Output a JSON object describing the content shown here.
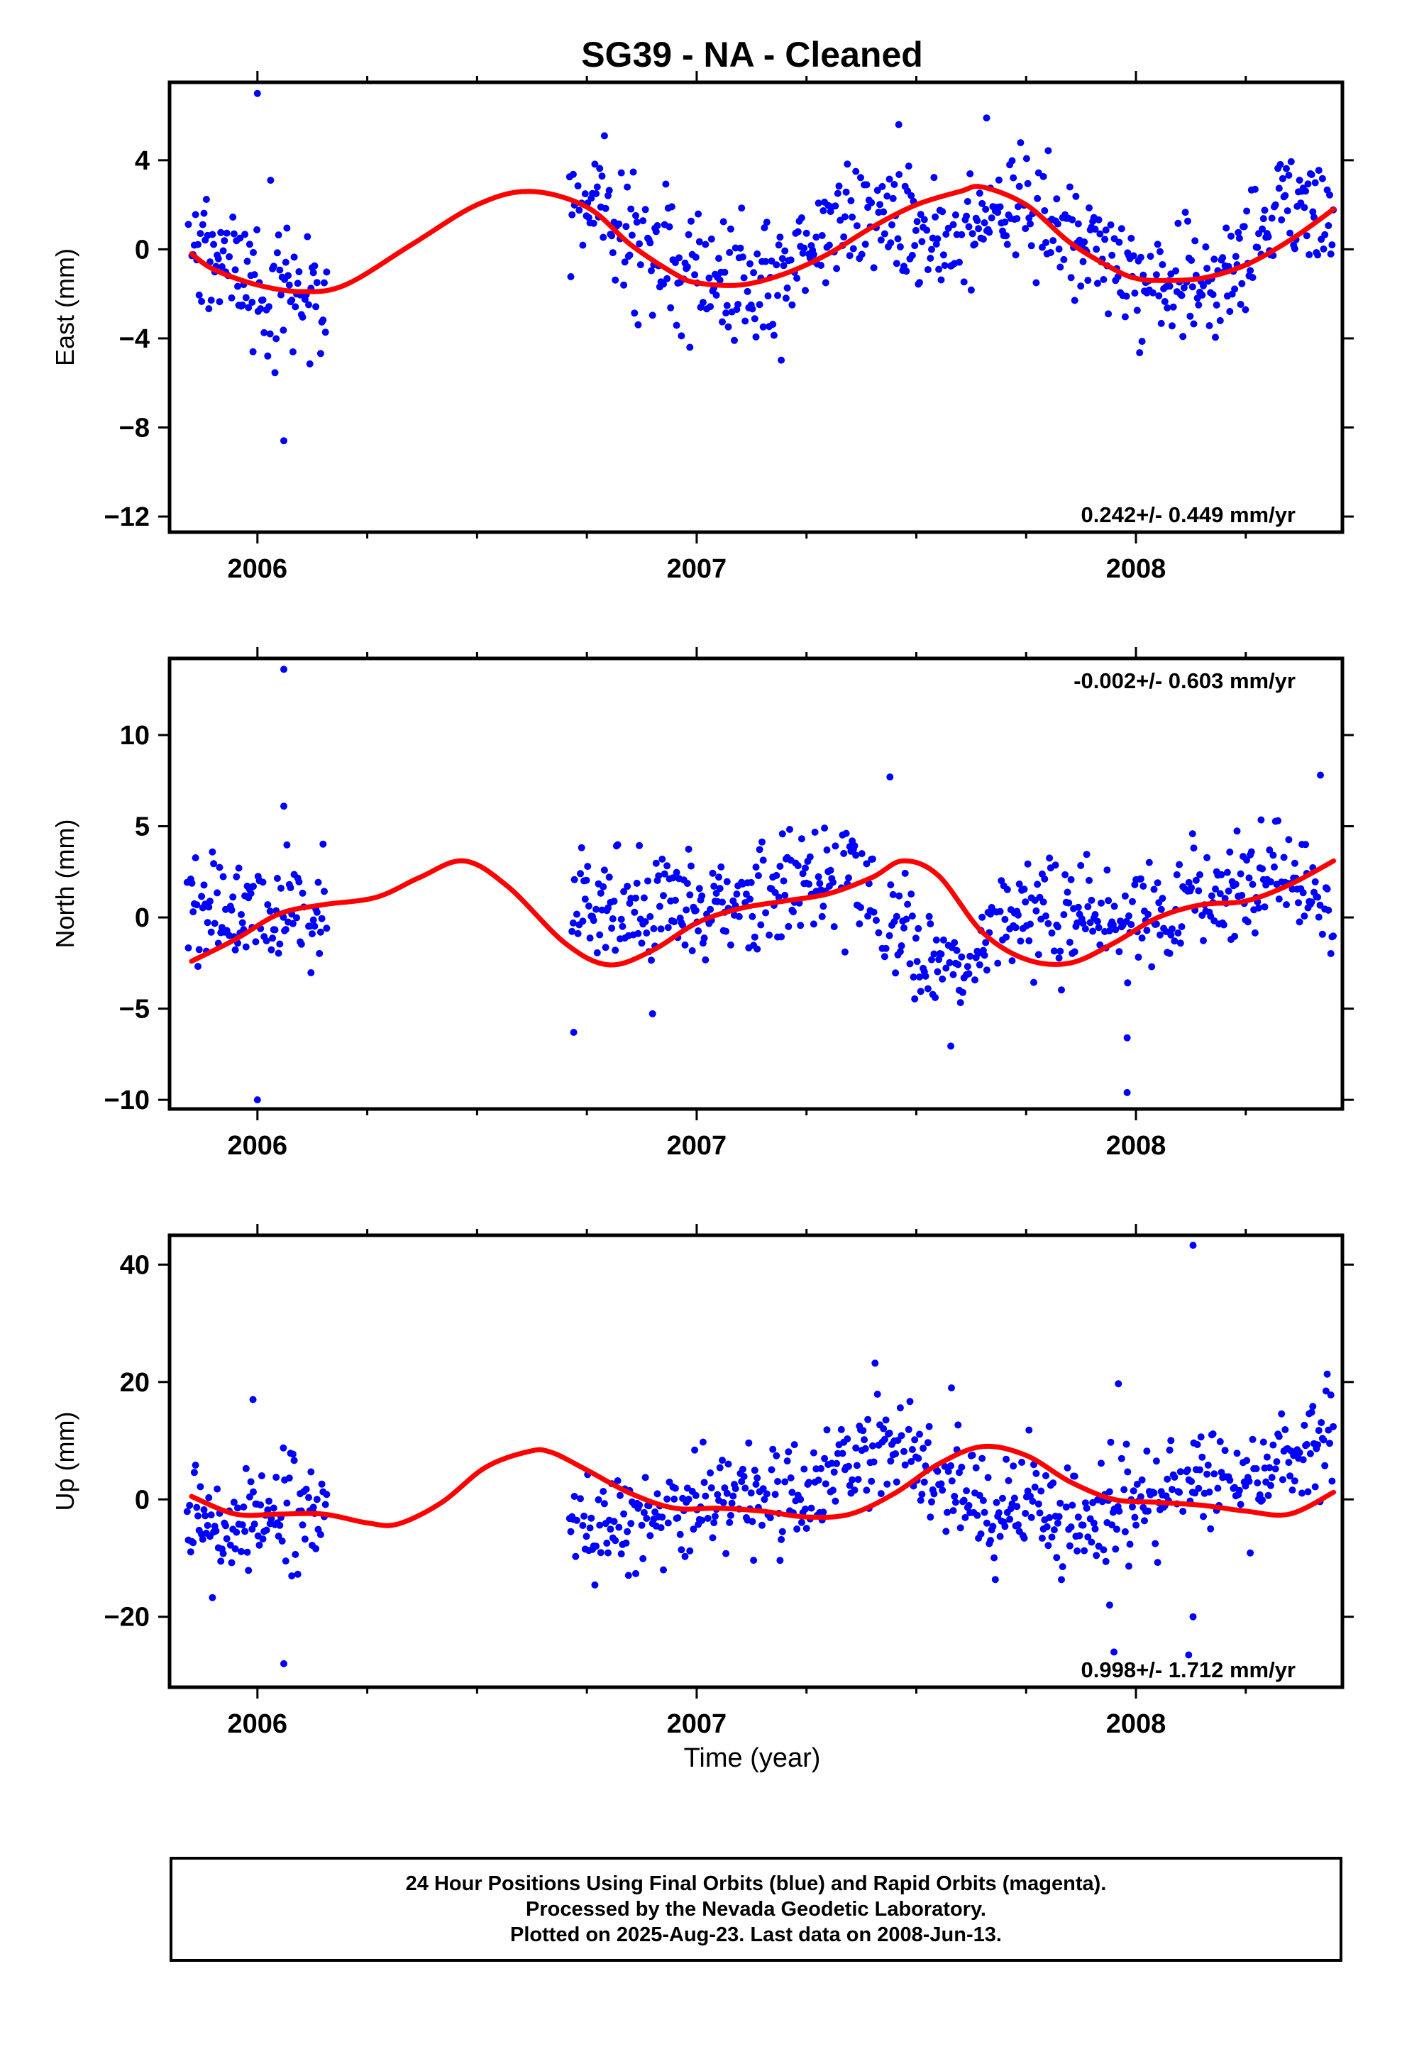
{
  "title": "SG39  - NA - Cleaned",
  "xlabel": "Time (year)",
  "colors": {
    "points": "#0000ff",
    "fit": "#ff0000",
    "frame": "#000000"
  },
  "footer": {
    "line1": "24 Hour Positions Using Final Orbits (blue) and Rapid Orbits (magenta).",
    "line2": "Processed by the Nevada Geodetic Laboratory.",
    "line3": "Plotted on 2025-Aug-23. Last data on 2008-Jun-13."
  },
  "chart_data": [
    {
      "type": "scatter",
      "ylabel": "East (mm)",
      "rate": "0.242+/- 0.449 mm/yr",
      "rate_position": "bottom-right",
      "xlim": [
        2005.8,
        2008.47
      ],
      "ylim": [
        -12.7,
        7.5
      ],
      "yticks": [
        4,
        0,
        -4,
        -8,
        -12
      ],
      "ytick_labels": [
        "4",
        "0",
        "−4",
        "−8",
        "−12"
      ],
      "xticks": [
        2006,
        2007,
        2008
      ],
      "xtick_labels": [
        "2006",
        "2007",
        "2008"
      ],
      "gaps": [
        [
          2006.16,
          2006.71
        ]
      ],
      "model": {
        "offset": 0.2,
        "trend": 0.242,
        "harmonics": [
          [
            -0.7,
            -1.2
          ],
          [
            -0.8,
            -0.6
          ],
          [
            0.3,
            0.2
          ]
        ],
        "noise": 1.3
      },
      "fit_curve": {
        "x": [
          2005.85,
          2005.9,
          2006.0,
          2006.1,
          2006.2,
          2006.35,
          2006.5,
          2006.62,
          2006.75,
          2006.85,
          2006.95,
          2007.0,
          2007.1,
          2007.2,
          2007.3,
          2007.4,
          2007.5,
          2007.6,
          2007.65,
          2007.75,
          2007.85,
          2007.95,
          2008.0,
          2008.05,
          2008.15,
          2008.25,
          2008.35,
          2008.45
        ],
        "y": [
          -0.2,
          -0.9,
          -1.6,
          -1.9,
          -1.6,
          0.2,
          2.0,
          2.6,
          1.9,
          0.2,
          -1.1,
          -1.5,
          -1.6,
          -1.1,
          -0.2,
          1.0,
          2.0,
          2.6,
          2.8,
          2.0,
          0.3,
          -0.9,
          -1.3,
          -1.4,
          -1.3,
          -0.7,
          0.4,
          1.8
        ]
      },
      "outliers": [
        {
          "x": 2006.0,
          "y": 7.0
        },
        {
          "x": 2006.06,
          "y": -8.6
        },
        {
          "x": 2005.99,
          "y": -4.6
        },
        {
          "x": 2006.03,
          "y": 3.1
        },
        {
          "x": 2007.66,
          "y": 5.9
        },
        {
          "x": 2007.46,
          "y": 5.6
        }
      ]
    },
    {
      "type": "scatter",
      "ylabel": "North (mm)",
      "rate": "-0.002+/- 0.603 mm/yr",
      "rate_position": "top-right",
      "xlim": [
        2005.8,
        2008.47
      ],
      "ylim": [
        -10.5,
        14.2
      ],
      "yticks": [
        10,
        5,
        0,
        -5,
        -10
      ],
      "ytick_labels": [
        "10",
        "5",
        "0",
        "−5",
        "−10"
      ],
      "xticks": [
        2006,
        2007,
        2008
      ],
      "xtick_labels": [
        "2006",
        "2007",
        "2008"
      ],
      "gaps": [
        [
          2006.16,
          2006.71
        ]
      ],
      "model": {
        "offset": 0.2,
        "trend": -0.002,
        "harmonics": [
          [
            1.2,
            0.8
          ],
          [
            -0.8,
            -1.0
          ],
          [
            0.4,
            0.3
          ]
        ],
        "noise": 1.5
      },
      "fit_curve": {
        "x": [
          2005.85,
          2005.95,
          2006.05,
          2006.15,
          2006.27,
          2006.37,
          2006.47,
          2006.57,
          2006.7,
          2006.8,
          2006.9,
          2007.0,
          2007.1,
          2007.2,
          2007.3,
          2007.4,
          2007.47,
          2007.55,
          2007.65,
          2007.75,
          2007.85,
          2007.95,
          2008.05,
          2008.15,
          2008.25,
          2008.35,
          2008.45
        ],
        "y": [
          -2.4,
          -1.2,
          0.2,
          0.7,
          1.1,
          2.2,
          3.1,
          1.7,
          -1.4,
          -2.6,
          -1.8,
          -0.3,
          0.5,
          0.9,
          1.3,
          2.2,
          3.1,
          2.3,
          -0.8,
          -2.3,
          -2.5,
          -1.4,
          0.0,
          0.7,
          0.9,
          1.8,
          3.1
        ]
      },
      "outliers": [
        {
          "x": 2006.06,
          "y": 13.6
        },
        {
          "x": 2006.0,
          "y": -10.0
        },
        {
          "x": 2007.98,
          "y": -9.6
        },
        {
          "x": 2006.72,
          "y": -6.3
        },
        {
          "x": 2007.98,
          "y": -6.6
        },
        {
          "x": 2006.06,
          "y": 6.1
        },
        {
          "x": 2007.44,
          "y": 7.7
        },
        {
          "x": 2008.42,
          "y": 7.8
        }
      ]
    },
    {
      "type": "scatter",
      "ylabel": "Up (mm)",
      "rate": "0.998+/- 1.712 mm/yr",
      "rate_position": "bottom-right",
      "xlim": [
        2005.8,
        2008.47
      ],
      "ylim": [
        -32,
        45
      ],
      "yticks": [
        40,
        20,
        0,
        -20
      ],
      "ytick_labels": [
        "40",
        "20",
        "0",
        "−20"
      ],
      "xticks": [
        2006,
        2007,
        2008
      ],
      "xtick_labels": [
        "2006",
        "2007",
        "2008"
      ],
      "gaps": [
        [
          2006.16,
          2006.71
        ]
      ],
      "model": {
        "offset": 1.0,
        "trend": 0.998,
        "harmonics": [
          [
            3.4,
            -4.0
          ],
          [
            -1.0,
            1.5
          ],
          [
            0.8,
            -0.5
          ]
        ],
        "noise": 4.5
      },
      "fit_curve": {
        "x": [
          2005.85,
          2005.95,
          2006.05,
          2006.15,
          2006.25,
          2006.32,
          2006.42,
          2006.52,
          2006.62,
          2006.67,
          2006.75,
          2006.85,
          2006.95,
          2007.05,
          2007.15,
          2007.25,
          2007.35,
          2007.45,
          2007.55,
          2007.65,
          2007.75,
          2007.85,
          2007.95,
          2008.05,
          2008.15,
          2008.25,
          2008.35,
          2008.45
        ],
        "y": [
          0.5,
          -2.5,
          -2.5,
          -2.5,
          -4.0,
          -4.2,
          -0.5,
          5.5,
          8.2,
          8.0,
          5.0,
          1.0,
          -1.5,
          -1.5,
          -2.0,
          -3.0,
          -2.5,
          1.0,
          6.0,
          9.0,
          7.5,
          3.0,
          0.0,
          -0.5,
          -1.0,
          -2.0,
          -2.5,
          1.2
        ]
      },
      "outliers": [
        {
          "x": 2008.13,
          "y": 43.3
        },
        {
          "x": 2006.06,
          "y": -28.0
        },
        {
          "x": 2007.95,
          "y": -26.0
        },
        {
          "x": 2008.12,
          "y": -26.5
        },
        {
          "x": 2007.96,
          "y": 19.7
        },
        {
          "x": 2007.58,
          "y": 19.0
        },
        {
          "x": 2005.99,
          "y": 17.0
        },
        {
          "x": 2007.94,
          "y": -18.0
        },
        {
          "x": 2008.13,
          "y": -20.0
        }
      ]
    }
  ]
}
